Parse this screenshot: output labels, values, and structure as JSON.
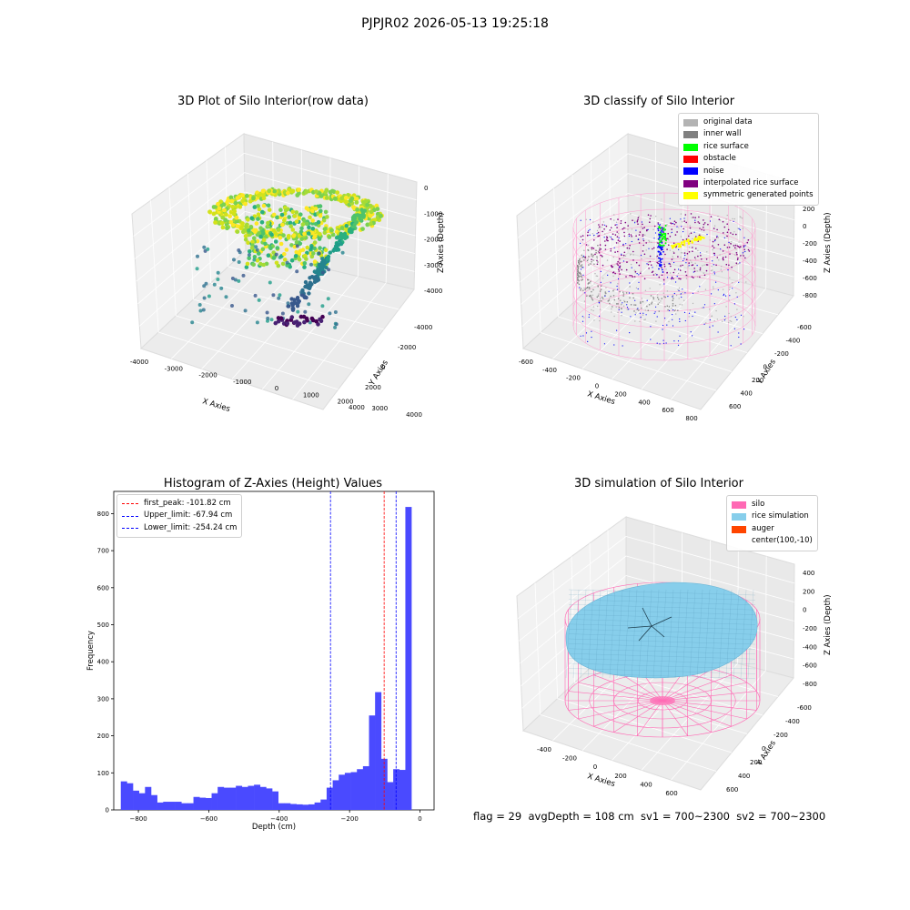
{
  "suptitle": "PJPJR02 2026-05-13 19:25:18",
  "chart_data": [
    {
      "type": "scatter",
      "title": "3D Plot of Silo Interior(row data)",
      "xlabel": "X Axies",
      "ylabel": "Y Axies",
      "zlabel": "Z Axies (Depth)",
      "xticks": [
        -4000,
        -3000,
        -2000,
        -1000,
        0,
        1000,
        2000,
        3000,
        4000
      ],
      "yticks": [
        -4000,
        -2000,
        0,
        2000,
        4000
      ],
      "zticks": [
        0,
        -1000,
        -2000,
        -3000,
        -4000
      ],
      "colormap": "viridis"
    },
    {
      "type": "scatter",
      "title": "3D classify of Silo Interior",
      "xlabel": "X Axies",
      "ylabel": "Y Axies",
      "zlabel": "Z Axies (Depth)",
      "xticks": [
        -600,
        -400,
        -200,
        0,
        200,
        400,
        600,
        800
      ],
      "yticks": [
        -600,
        -400,
        -200,
        0,
        200,
        400,
        600
      ],
      "zticks": [
        200,
        0,
        -200,
        -400,
        -600,
        -800
      ],
      "legend_position": "top-right",
      "legend": [
        {
          "name": "original data",
          "color": "#b3b3b3"
        },
        {
          "name": "inner wall",
          "color": "#808080"
        },
        {
          "name": "rice surface",
          "color": "#00ff00"
        },
        {
          "name": "obstacle",
          "color": "#ff0000"
        },
        {
          "name": "noise",
          "color": "#0000ff"
        },
        {
          "name": "interpolated rice surface",
          "color": "#800080"
        },
        {
          "name": "symmetric generated points",
          "color": "#ffff00"
        }
      ]
    },
    {
      "type": "bar",
      "title": "Histogram of Z-Axies (Height) Values",
      "xlabel": "Depth (cm)",
      "ylabel": "Frequency",
      "xlim": [
        -870,
        40
      ],
      "ylim": [
        0,
        860
      ],
      "xticks": [
        -800,
        -600,
        -400,
        -200,
        0
      ],
      "yticks": [
        0,
        100,
        200,
        300,
        400,
        500,
        600,
        700,
        800
      ],
      "bin_start": -850,
      "bin_width": 17.2,
      "values": [
        77,
        72,
        52,
        45,
        62,
        40,
        20,
        22,
        22,
        22,
        18,
        18,
        35,
        33,
        32,
        45,
        62,
        60,
        60,
        65,
        62,
        65,
        68,
        62,
        58,
        50,
        18,
        18,
        16,
        15,
        14,
        15,
        20,
        28,
        60,
        80,
        95,
        100,
        102,
        110,
        118,
        255,
        318,
        138,
        75,
        110,
        108,
        818
      ],
      "bar_color": "#4a4aff",
      "legend_position": "top-left",
      "lines": [
        {
          "label": "first_peak: -101.82 cm",
          "x": -101.82,
          "color": "#ff0000"
        },
        {
          "label": "Upper_limit: -67.94 cm",
          "x": -67.94,
          "color": "#0000ff"
        },
        {
          "label": "Lower_limit: -254.24 cm",
          "x": -254.24,
          "color": "#0000ff"
        }
      ]
    },
    {
      "type": "surface",
      "title": "3D simulation of Silo Interior",
      "xlabel": "X Axies",
      "ylabel": "Y Axies",
      "zlabel": "Z Axies (Depth)",
      "xticks": [
        -400,
        -200,
        0,
        200,
        400,
        600
      ],
      "yticks": [
        -600,
        -400,
        -200,
        0,
        200,
        400,
        600
      ],
      "zticks": [
        400,
        200,
        0,
        -200,
        -400,
        -600,
        -800
      ],
      "legend_position": "top-right",
      "legend": [
        {
          "name": "silo",
          "color": "#ff69b4"
        },
        {
          "name": "rice simulation",
          "color": "#87ceeb"
        },
        {
          "name": "auger",
          "color": "#ff4500"
        },
        {
          "name": "center(100,-10)",
          "color": ""
        }
      ]
    }
  ],
  "footer": "flag = 29  avgDepth = 108 cm  sv1 = 700~2300  sv2 = 700~2300"
}
